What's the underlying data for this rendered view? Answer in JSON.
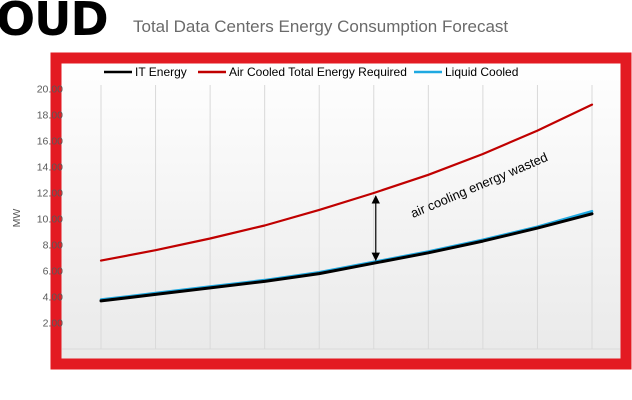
{
  "logo": {
    "text": "OUD"
  },
  "frame": {
    "border_color": "#e31a22"
  },
  "chart_data": {
    "type": "line",
    "title": "Total Data Centers Energy Consumption Forecast",
    "ylabel": "MW",
    "xlabel": "",
    "ylim": [
      0,
      20
    ],
    "y_ticks": [
      "20.00",
      "18.00",
      "16.00",
      "14.00",
      "12.00",
      "10.00",
      "8.00",
      "6.00",
      "4.00",
      "2.00"
    ],
    "x_points": 10,
    "grid": true,
    "legend_position": "top",
    "series": [
      {
        "name": "IT Energy",
        "color": "#000000",
        "values": [
          3.7,
          4.2,
          4.7,
          5.2,
          5.8,
          6.6,
          7.4,
          8.3,
          9.3,
          10.4
        ]
      },
      {
        "name": "Air Cooled Total Energy Required",
        "color": "#c00000",
        "values": [
          6.8,
          7.6,
          8.5,
          9.5,
          10.7,
          12.0,
          13.4,
          15.0,
          16.8,
          18.8
        ]
      },
      {
        "name": "Liquid Cooled",
        "color": "#1fa9e1",
        "values": [
          3.8,
          4.3,
          4.8,
          5.3,
          5.9,
          6.7,
          7.5,
          8.4,
          9.4,
          10.6
        ]
      }
    ],
    "annotation": {
      "text": "air cooling energy wasted",
      "at_index": 5
    }
  }
}
